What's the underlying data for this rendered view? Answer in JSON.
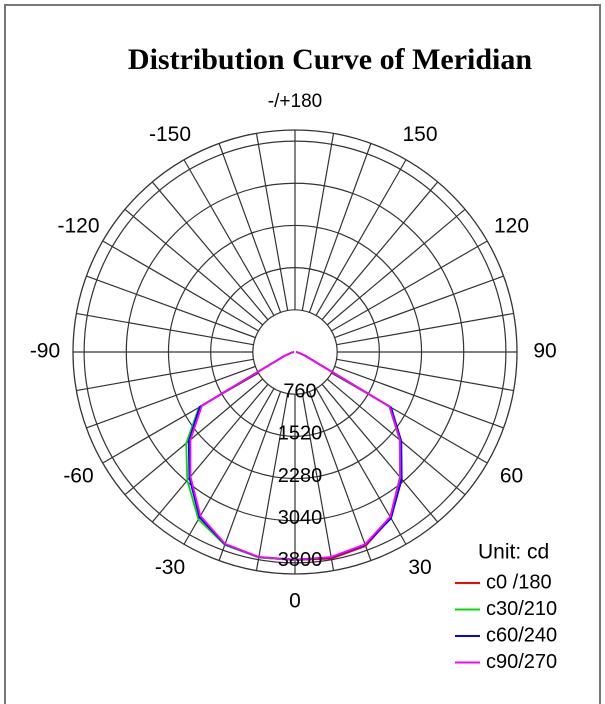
{
  "chart_data": {
    "type": "polar",
    "title": "Distribution Curve of Meridian",
    "unit_label": "Unit: cd",
    "theta": [
      -90,
      -80,
      -70,
      -60,
      -50,
      -40,
      -30,
      -20,
      -10,
      0,
      10,
      20,
      30,
      40,
      50,
      60,
      70,
      80,
      90
    ],
    "series": [
      {
        "name": "c0 /180",
        "color": "#ff0000",
        "values": [
          20,
          60,
          200,
          1950,
          2470,
          2940,
          3420,
          3690,
          3760,
          3750,
          3780,
          3720,
          3450,
          2960,
          2480,
          1980,
          190,
          60,
          20
        ]
      },
      {
        "name": "c30/210",
        "color": "#00dd00",
        "values": [
          20,
          60,
          210,
          2000,
          2560,
          3020,
          3480,
          3700,
          3760,
          3750,
          3760,
          3700,
          3430,
          2940,
          2460,
          1960,
          180,
          60,
          20
        ]
      },
      {
        "name": "c60/240",
        "color": "#0000ff",
        "values": [
          20,
          60,
          200,
          1980,
          2500,
          2960,
          3440,
          3690,
          3750,
          3740,
          3760,
          3700,
          3460,
          2990,
          2500,
          2000,
          200,
          60,
          20
        ]
      },
      {
        "name": "c90/270",
        "color": "#ff00ff",
        "values": [
          20,
          60,
          190,
          1940,
          2460,
          2930,
          3410,
          3680,
          3750,
          3740,
          3750,
          3690,
          3430,
          2950,
          2470,
          1970,
          190,
          60,
          20
        ]
      }
    ],
    "rlim": [
      0,
      4000
    ],
    "rticks": [
      760,
      1520,
      2280,
      3040,
      3800
    ],
    "thetaticks": [
      {
        "value": 180,
        "label": "-/+180"
      },
      150,
      120,
      90,
      60,
      30,
      0,
      -30,
      -60,
      -90,
      -120,
      -150
    ]
  }
}
